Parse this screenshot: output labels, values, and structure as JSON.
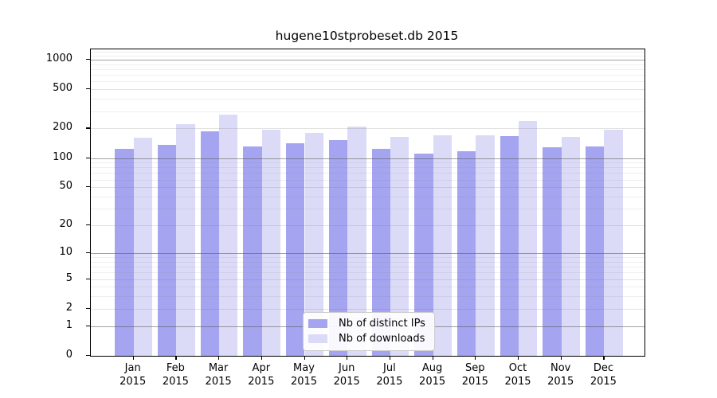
{
  "figure": {
    "background": "#ffffff"
  },
  "chart_data": {
    "type": "bar",
    "title": "hugene10stprobeset.db 2015",
    "yscale": "log(1+y)",
    "grid": true,
    "legend_position": "inside-bottom-center",
    "year": "2015",
    "months": [
      "Jan",
      "Feb",
      "Mar",
      "Apr",
      "May",
      "Jun",
      "Jul",
      "Aug",
      "Sep",
      "Oct",
      "Nov",
      "Dec"
    ],
    "series": [
      {
        "name": "Nb of distinct IPs",
        "color": "#a4a4f0",
        "values": [
          124,
          136,
          188,
          131,
          142,
          152,
          124,
          111,
          118,
          168,
          128,
          131
        ]
      },
      {
        "name": "Nb of downloads",
        "color": "#dbdbf8",
        "values": [
          160,
          222,
          275,
          196,
          180,
          210,
          165,
          172,
          169,
          240,
          165,
          194
        ]
      }
    ],
    "y_tick_labels": [
      "1000",
      "500",
      "200",
      "100",
      "50",
      "20",
      "10",
      "5",
      "2",
      "1",
      "0"
    ],
    "y_tick_values": [
      1000,
      500,
      200,
      100,
      50,
      20,
      10,
      5,
      2,
      1,
      0
    ],
    "y_major_grid_values": [
      1,
      10,
      100,
      1000
    ],
    "y_minor_grid_values": [
      3,
      4,
      6,
      7,
      8,
      9,
      30,
      40,
      60,
      70,
      80,
      90,
      300,
      400,
      600,
      700,
      800,
      900,
      1100,
      1200
    ],
    "ylim": [
      0,
      1273
    ],
    "colors": {
      "axis": "#000000",
      "major_grid": "#8c8c8c",
      "mid_grid": "#dddddd",
      "minor_grid": "#ededed",
      "legend_border": "#cccccc"
    }
  }
}
